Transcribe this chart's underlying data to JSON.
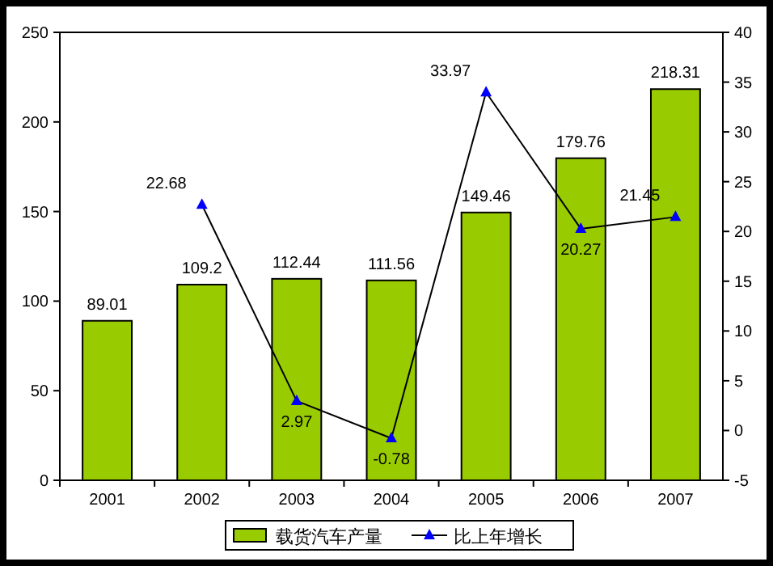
{
  "chart_data": {
    "type": "bar",
    "categories": [
      "2001",
      "2002",
      "2003",
      "2004",
      "2005",
      "2006",
      "2007"
    ],
    "series": [
      {
        "name": "载货汽车产量",
        "color": "#99cc00",
        "values": [
          89.01,
          109.2,
          112.44,
          111.56,
          149.46,
          179.76,
          218.31
        ]
      },
      {
        "name": "比上年增长",
        "type": "line",
        "axis": "y2",
        "color": "#000000",
        "values": [
          null,
          22.68,
          2.97,
          -0.78,
          33.97,
          20.27,
          21.45
        ]
      }
    ],
    "ylim": [
      0,
      250
    ],
    "yticks": [
      0,
      50,
      100,
      150,
      200,
      250
    ],
    "y2lim": [
      -5,
      40
    ],
    "y2ticks": [
      -5,
      0,
      5,
      10,
      15,
      20,
      25,
      30,
      35,
      40
    ],
    "data_labels": true,
    "legend": "bottom",
    "marker": "triangle",
    "grid": false
  }
}
